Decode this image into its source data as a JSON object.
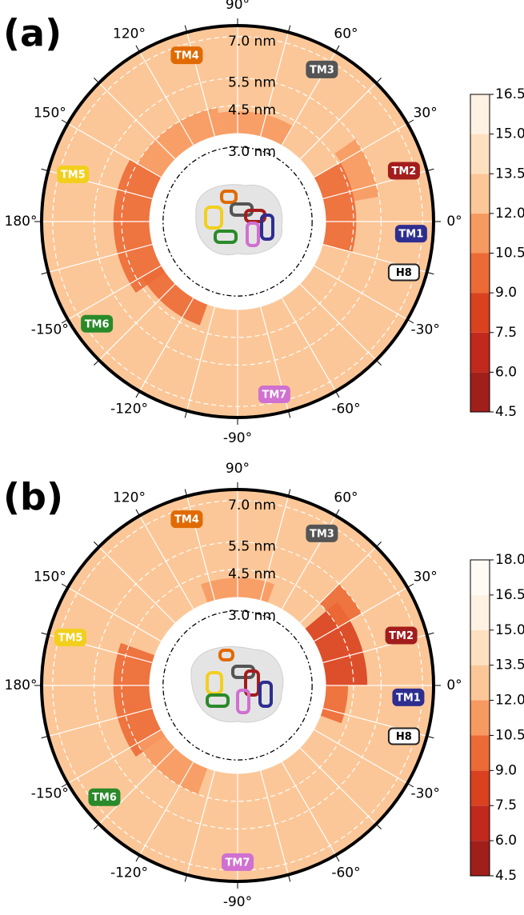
{
  "chart_data": [
    {
      "type": "polar-heatmap",
      "panel_label": "(a)",
      "rlim": [
        0.3,
        7.4
      ],
      "inner_r": 3.5,
      "base_value": 12.8,
      "rticks": [
        {
          "value": 3,
          "label": "3.0 nm"
        },
        {
          "value": 4.5,
          "label": "4.5 nm"
        },
        {
          "value": 5.5,
          "label": "5.5 nm"
        },
        {
          "value": 7,
          "label": "7.0 nm"
        }
      ],
      "xticks": [
        {
          "value": 0,
          "label": "0°"
        },
        {
          "value": 30,
          "label": "30°"
        },
        {
          "value": 60,
          "label": "60°"
        },
        {
          "value": 90,
          "label": "90°"
        },
        {
          "value": 120,
          "label": "120°"
        },
        {
          "value": 150,
          "label": "150°"
        },
        {
          "value": 180,
          "label": "180°"
        },
        {
          "value": -150,
          "label": "-150°"
        },
        {
          "value": -120,
          "label": "-120°"
        },
        {
          "value": -90,
          "label": "-90°"
        },
        {
          "value": -60,
          "label": "-60°"
        },
        {
          "value": -30,
          "label": "-30°"
        }
      ],
      "xminorticks": [
        15,
        45,
        75,
        105,
        135,
        165,
        -165,
        -135,
        -105,
        -75,
        -45,
        -15
      ],
      "regions": [
        {
          "theta": [
            150,
            215
          ],
          "r": [
            3.5,
            4.8
          ],
          "value": 9
        },
        {
          "theta": [
            -15,
            30
          ],
          "r": [
            3.5,
            4.6
          ],
          "value": 9.5
        },
        {
          "theta": [
            100,
            150
          ],
          "r": [
            3.5,
            4.5
          ],
          "value": 10.5
        },
        {
          "theta": [
            -150,
            -110
          ],
          "r": [
            3.5,
            4.3
          ],
          "value": 10
        },
        {
          "theta": [
            10,
            35
          ],
          "r": [
            4.6,
            5.5
          ],
          "value": 11
        },
        {
          "theta": [
            60,
            100
          ],
          "r": [
            3.5,
            4.3
          ],
          "value": 11
        }
      ],
      "annotations": [
        {
          "text": "TM1",
          "theta": -4,
          "r": 6.6,
          "color": "#2e2e90",
          "text_color": "#ffffff"
        },
        {
          "text": "TM2",
          "theta": 17,
          "r": 6.6,
          "color": "#a31d1d",
          "text_color": "#ffffff"
        },
        {
          "text": "TM3",
          "theta": 61,
          "r": 6.6,
          "color": "#555555",
          "text_color": "#ffffff"
        },
        {
          "text": "TM4",
          "theta": 107,
          "r": 6.6,
          "color": "#e06a00",
          "text_color": "#ffffff"
        },
        {
          "text": "TM5",
          "theta": 164,
          "r": 6.5,
          "color": "#f2cf1d",
          "text_color": "#ffffff"
        },
        {
          "text": "TM6",
          "theta": -144,
          "r": 6.6,
          "color": "#2a8a2a",
          "text_color": "#ffffff"
        },
        {
          "text": "TM7",
          "theta": -78,
          "r": 6.7,
          "color": "#d070d0",
          "text_color": "#ffffff"
        },
        {
          "text": "H8",
          "theta": -17,
          "r": 6.6,
          "color": "#ffffff",
          "text_color": "#000000"
        }
      ],
      "colorbar": {
        "ticks": [
          4.5,
          {
            "value": 6,
            "label": "6.0"
          },
          7.5,
          {
            "value": 9,
            "label": "9.0"
          },
          10.5,
          {
            "value": 12,
            "label": "12.0"
          },
          13.5,
          {
            "value": 15,
            "label": "15.0"
          },
          16.5
        ],
        "colors": [
          "#a11f1a",
          "#c1291c",
          "#d9411f",
          "#ec6a36",
          "#f79a62",
          "#fcc798",
          "#fde0c0",
          "#fff2e3"
        ]
      }
    },
    {
      "type": "polar-heatmap",
      "panel_label": "(b)",
      "rlim": [
        0.3,
        7.4
      ],
      "inner_r": 3.5,
      "base_value": 12.6,
      "rticks": [
        {
          "value": 3,
          "label": "3.0 nm"
        },
        {
          "value": 4.5,
          "label": "4.5 nm"
        },
        {
          "value": 5.5,
          "label": "5.5 nm"
        },
        {
          "value": 7,
          "label": "7.0 nm"
        }
      ],
      "xticks": [
        {
          "value": 0,
          "label": "0°"
        },
        {
          "value": 30,
          "label": "30°"
        },
        {
          "value": 60,
          "label": "60°"
        },
        {
          "value": 90,
          "label": "90°"
        },
        {
          "value": 120,
          "label": "120°"
        },
        {
          "value": 150,
          "label": "150°"
        },
        {
          "value": 180,
          "label": "180°"
        },
        {
          "value": -150,
          "label": "-150°"
        },
        {
          "value": -120,
          "label": "-120°"
        },
        {
          "value": -90,
          "label": "-90°"
        },
        {
          "value": -60,
          "label": "-60°"
        },
        {
          "value": -30,
          "label": "-30°"
        }
      ],
      "xminorticks": [
        15,
        45,
        75,
        105,
        135,
        165,
        -165,
        -135,
        -105,
        -75,
        -45,
        -15
      ],
      "regions": [
        {
          "theta": [
            0,
            40
          ],
          "r": [
            3.5,
            5.0
          ],
          "value": 8
        },
        {
          "theta": [
            -20,
            0
          ],
          "r": [
            3.5,
            4.3
          ],
          "value": 9
        },
        {
          "theta": [
            160,
            215
          ],
          "r": [
            3.5,
            4.8
          ],
          "value": 9
        },
        {
          "theta": [
            -150,
            -110
          ],
          "r": [
            3.5,
            4.5
          ],
          "value": 10.5
        },
        {
          "theta": [
            70,
            110
          ],
          "r": [
            3.5,
            4.2
          ],
          "value": 11
        },
        {
          "theta": [
            30,
            45
          ],
          "r": [
            4.5,
            5.5
          ],
          "value": 10
        }
      ],
      "annotations": [
        {
          "text": "TM1",
          "theta": -4,
          "r": 6.5,
          "color": "#2e2e90",
          "text_color": "#ffffff"
        },
        {
          "text": "TM2",
          "theta": 17,
          "r": 6.5,
          "color": "#a31d1d",
          "text_color": "#ffffff"
        },
        {
          "text": "TM3",
          "theta": 61,
          "r": 6.6,
          "color": "#555555",
          "text_color": "#ffffff"
        },
        {
          "text": "TM4",
          "theta": 107,
          "r": 6.6,
          "color": "#e06a00",
          "text_color": "#ffffff"
        },
        {
          "text": "TM5",
          "theta": 164,
          "r": 6.6,
          "color": "#f2cf1d",
          "text_color": "#ffffff"
        },
        {
          "text": "TM6",
          "theta": -140,
          "r": 6.6,
          "color": "#2a8a2a",
          "text_color": "#ffffff"
        },
        {
          "text": "TM7",
          "theta": -90,
          "r": 6.7,
          "color": "#d070d0",
          "text_color": "#ffffff"
        },
        {
          "text": "H8",
          "theta": -17,
          "r": 6.6,
          "color": "#ffffff",
          "text_color": "#000000"
        }
      ],
      "colorbar": {
        "ticks": [
          4.5,
          {
            "value": 6,
            "label": "6.0"
          },
          7.5,
          {
            "value": 9,
            "label": "9.0"
          },
          10.5,
          {
            "value": 12,
            "label": "12.0"
          },
          13.5,
          {
            "value": 15,
            "label": "15.0"
          },
          16.5,
          {
            "value": 18,
            "label": "18.0"
          }
        ],
        "colors": [
          "#a11f1a",
          "#c1291c",
          "#d9411f",
          "#ec6a36",
          "#f79a62",
          "#fcc798",
          "#fde0c0",
          "#fff2e3",
          "#fffaf4"
        ]
      }
    }
  ]
}
